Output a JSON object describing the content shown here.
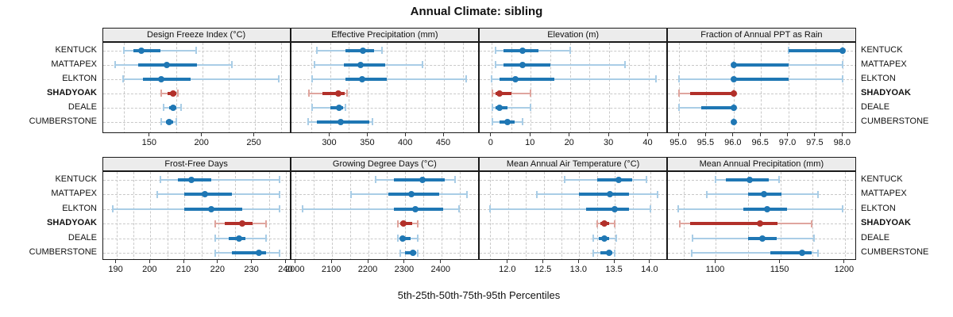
{
  "title": "Annual Climate: sibling",
  "chart_data": {
    "type": "dotplot",
    "title": "Annual Climate: sibling",
    "xlabel": "5th-25th-50th-75th-95th Percentiles",
    "percentile_levels": [
      5,
      25,
      50,
      75,
      95
    ],
    "rows": [
      "KENTUCK",
      "MATTAPEX",
      "ELKTON",
      "SHADYOAK",
      "DEALE",
      "CUMBERSTONE"
    ],
    "highlight_row": "SHADYOAK",
    "row_labels_both_sides": true,
    "legend_position": "none",
    "grid": true,
    "colors": {
      "normal": "#1f77b4",
      "normal_light": "#a9cde6",
      "highlight": "#b2302a",
      "highlight_light": "#dfa59e",
      "strip_bg": "#ececec",
      "gridline": "#c9c9c9",
      "border": "#1a1a1a"
    },
    "panels": [
      {
        "title": "Design Freeze Index (°C)",
        "xlim": [
          105,
          285
        ],
        "ticks": [
          150,
          200,
          250
        ],
        "tick_labels": [
          "150",
          "200",
          "250"
        ],
        "gridlines": [
          125,
          150,
          175,
          200,
          225,
          250,
          275
        ],
        "series": [
          {
            "name": "KENTUCK",
            "values": [
              125,
              134,
              142,
              160,
              194
            ]
          },
          {
            "name": "MATTAPEX",
            "values": [
              117,
              139,
              166,
              195,
              228
            ]
          },
          {
            "name": "ELKTON",
            "values": [
              124,
              143,
              161,
              189,
              273
            ]
          },
          {
            "name": "SHADYOAK",
            "values": [
              161,
              167,
              172,
              175,
              177
            ]
          },
          {
            "name": "DEALE",
            "values": [
              163,
              168,
              172,
              175,
              180
            ]
          },
          {
            "name": "CUMBERSTONE",
            "values": [
              161,
              165,
              168,
              172,
              175
            ]
          }
        ]
      },
      {
        "title": "Effective Precipitation (mm)",
        "xlim": [
          249,
          497
        ],
        "ticks": [
          300,
          350,
          400,
          450
        ],
        "tick_labels": [
          "300",
          "350",
          "400",
          "450"
        ],
        "gridlines": [
          275,
          300,
          325,
          350,
          375,
          400,
          425,
          450,
          475
        ],
        "series": [
          {
            "name": "KENTUCK",
            "values": [
              283,
              320,
              343,
              358,
              368
            ]
          },
          {
            "name": "MATTAPEX",
            "values": [
              280,
              318,
              340,
              373,
              422
            ]
          },
          {
            "name": "ELKTON",
            "values": [
              276,
              320,
              342,
              375,
              479
            ]
          },
          {
            "name": "SHADYOAK",
            "values": [
              272,
              290,
              311,
              319,
              322
            ]
          },
          {
            "name": "DEALE",
            "values": [
              276,
              300,
              312,
              317,
              320
            ]
          },
          {
            "name": "CUMBERSTONE",
            "values": [
              271,
              283,
              314,
              352,
              356
            ]
          }
        ]
      },
      {
        "title": "Elevation (m)",
        "xlim": [
          -3,
          45
        ],
        "ticks": [
          0,
          10,
          20,
          30,
          40
        ],
        "tick_labels": [
          "0",
          "10",
          "20",
          "30",
          "40"
        ],
        "gridlines": [
          0,
          5,
          10,
          15,
          20,
          25,
          30,
          35,
          40,
          45
        ],
        "series": [
          {
            "name": "KENTUCK",
            "values": [
              1,
              3,
              8,
              12,
              20
            ]
          },
          {
            "name": "MATTAPEX",
            "values": [
              1,
              3,
              8,
              15,
              34
            ]
          },
          {
            "name": "ELKTON",
            "values": [
              0,
              2,
              6,
              16,
              42
            ]
          },
          {
            "name": "SHADYOAK",
            "values": [
              0.3,
              1,
              2,
              5,
              10
            ]
          },
          {
            "name": "DEALE",
            "values": [
              0.3,
              1,
              2,
              4,
              10
            ]
          },
          {
            "name": "CUMBERSTONE",
            "values": [
              0.3,
              2,
              4,
              6,
              8
            ]
          }
        ]
      },
      {
        "title": "Fraction of Annual PPT as Rain",
        "xlim": [
          94.8,
          98.25
        ],
        "ticks": [
          95.0,
          95.5,
          96.0,
          96.5,
          97.0,
          97.5,
          98.0
        ],
        "tick_labels": [
          "95.0",
          "95.5",
          "96.0",
          "96.5",
          "97.0",
          "97.5",
          "98.0"
        ],
        "gridlines": [
          95,
          95.5,
          96,
          96.5,
          97,
          97.5,
          98
        ],
        "series": [
          {
            "name": "KENTUCK",
            "values": [
              97,
              97,
              98,
              98,
              98
            ]
          },
          {
            "name": "MATTAPEX",
            "values": [
              96,
              96,
              96,
              97,
              98
            ]
          },
          {
            "name": "ELKTON",
            "values": [
              95,
              96,
              96,
              97,
              98
            ]
          },
          {
            "name": "SHADYOAK",
            "values": [
              95,
              95.2,
              96,
              96,
              96
            ]
          },
          {
            "name": "DEALE",
            "values": [
              95,
              95.4,
              96,
              96,
              96
            ]
          },
          {
            "name": "CUMBERSTONE",
            "values": [
              96,
              96,
              96,
              96,
              96
            ]
          }
        ]
      },
      {
        "title": "Frost-Free Days",
        "xlim": [
          186,
          241.5
        ],
        "ticks": [
          190,
          200,
          210,
          220,
          230,
          240
        ],
        "tick_labels": [
          "190",
          "200",
          "210",
          "220",
          "230",
          "240"
        ],
        "gridlines": [
          190,
          195,
          200,
          205,
          210,
          215,
          220,
          225,
          230,
          235,
          240
        ],
        "series": [
          {
            "name": "KENTUCK",
            "values": [
              203,
              208,
              212,
              218,
              238
            ]
          },
          {
            "name": "MATTAPEX",
            "values": [
              202,
              210,
              216,
              224,
              238
            ]
          },
          {
            "name": "ELKTON",
            "values": [
              189,
              210,
              218,
              227,
              238
            ]
          },
          {
            "name": "SHADYOAK",
            "values": [
              219,
              222,
              227,
              230,
              234
            ]
          },
          {
            "name": "DEALE",
            "values": [
              219,
              223,
              226,
              228,
              234
            ]
          },
          {
            "name": "CUMBERSTONE",
            "values": [
              219,
              224,
              232,
              234,
              238
            ]
          }
        ]
      },
      {
        "title": "Growing Degree Days (°C)",
        "xlim": [
          1988,
          2505
        ],
        "ticks": [
          2000,
          2100,
          2200,
          2300,
          2400
        ],
        "tick_labels": [
          "2000",
          "2100",
          "2200",
          "2300",
          "2400"
        ],
        "gridlines": [
          2000,
          2050,
          2100,
          2150,
          2200,
          2250,
          2300,
          2350,
          2400,
          2450,
          2500
        ],
        "series": [
          {
            "name": "KENTUCK",
            "values": [
              2220,
              2270,
              2348,
              2410,
              2437
            ]
          },
          {
            "name": "MATTAPEX",
            "values": [
              2153,
              2255,
              2317,
              2395,
              2470
            ]
          },
          {
            "name": "ELKTON",
            "values": [
              2018,
              2270,
              2328,
              2405,
              2448
            ]
          },
          {
            "name": "SHADYOAK",
            "values": [
              2280,
              2287,
              2296,
              2320,
              2336
            ]
          },
          {
            "name": "DEALE",
            "values": [
              2280,
              2287,
              2294,
              2315,
              2334
            ]
          },
          {
            "name": "CUMBERSTONE",
            "values": [
              2288,
              2300,
              2322,
              2331,
              2336
            ]
          }
        ]
      },
      {
        "title": "Mean Annual Air Temperature (°C)",
        "xlim": [
          11.6,
          14.25
        ],
        "ticks": [
          12.0,
          12.5,
          13.0,
          13.5,
          14.0
        ],
        "tick_labels": [
          "12.0",
          "12.5",
          "13.0",
          "13.5",
          "14.0"
        ],
        "gridlines": [
          11.75,
          12,
          12.25,
          12.5,
          12.75,
          13,
          13.25,
          13.5,
          13.75,
          14,
          14.25
        ],
        "series": [
          {
            "name": "KENTUCK",
            "values": [
              12.8,
              13.25,
              13.55,
              13.75,
              13.95
            ]
          },
          {
            "name": "MATTAPEX",
            "values": [
              12.4,
              13.0,
              13.43,
              13.7,
              14.1
            ]
          },
          {
            "name": "ELKTON",
            "values": [
              11.75,
              13.1,
              13.5,
              13.7,
              14.0
            ]
          },
          {
            "name": "SHADYOAK",
            "values": [
              13.25,
              13.3,
              13.35,
              13.42,
              13.5
            ]
          },
          {
            "name": "DEALE",
            "values": [
              13.2,
              13.28,
              13.35,
              13.42,
              13.52
            ]
          },
          {
            "name": "CUMBERSTONE",
            "values": [
              13.2,
              13.3,
              13.42,
              13.47,
              13.5
            ]
          }
        ]
      },
      {
        "title": "Mean Annual Precipitation (mm)",
        "xlim": [
          1063,
          1209
        ],
        "ticks": [
          1100,
          1150,
          1200
        ],
        "tick_labels": [
          "1100",
          "1150",
          "1200"
        ],
        "gridlines": [
          1075,
          1100,
          1125,
          1150,
          1175,
          1200
        ],
        "series": [
          {
            "name": "KENTUCK",
            "values": [
              1100,
              1108,
              1126,
              1141,
              1149
            ]
          },
          {
            "name": "MATTAPEX",
            "values": [
              1093,
              1125,
              1137,
              1151,
              1179
            ]
          },
          {
            "name": "ELKTON",
            "values": [
              1071,
              1121,
              1140,
              1155,
              1198
            ]
          },
          {
            "name": "SHADYOAK",
            "values": [
              1072,
              1080,
              1134,
              1148,
              1174
            ]
          },
          {
            "name": "DEALE",
            "values": [
              1082,
              1125,
              1136,
              1147,
              1176
            ]
          },
          {
            "name": "CUMBERSTONE",
            "values": [
              1081,
              1142,
              1167,
              1174,
              1179
            ]
          }
        ]
      }
    ]
  }
}
